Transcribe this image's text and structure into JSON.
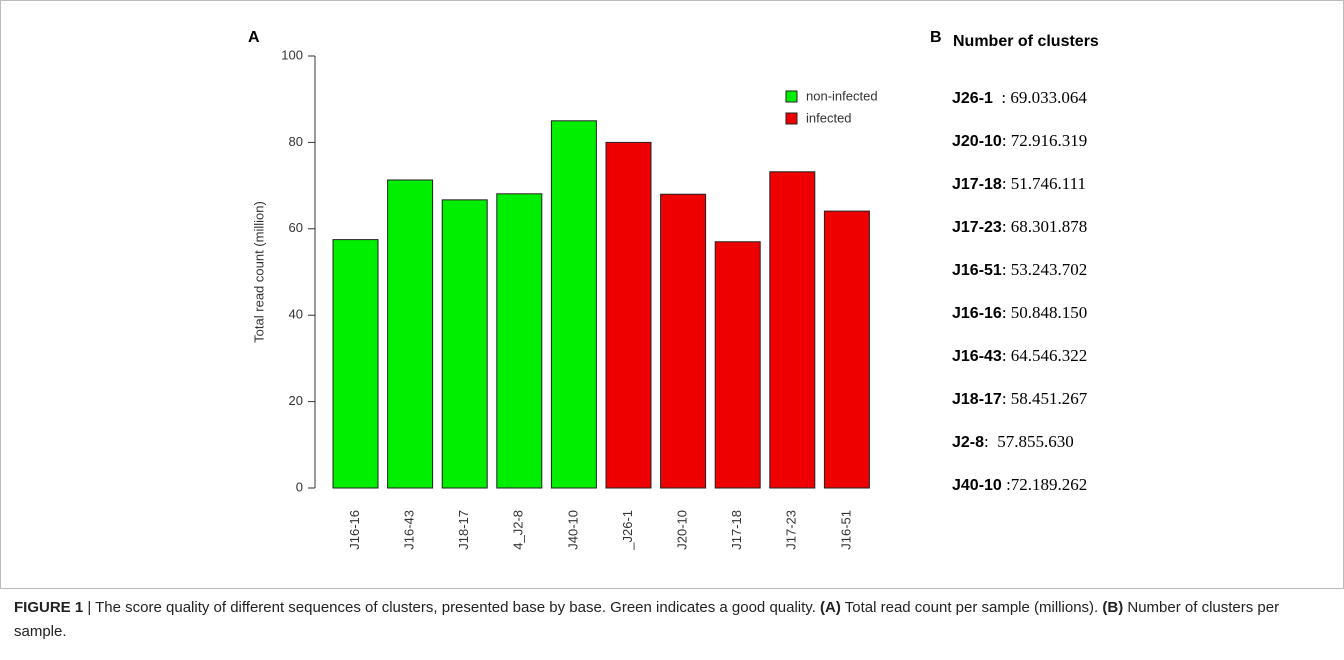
{
  "panel_a": {
    "label": "A"
  },
  "chart_data": {
    "type": "bar",
    "ylabel": "Total read count (million)",
    "categories": [
      "J16-16",
      "J16-43",
      "J18-17",
      "4_J2-8",
      "J40-10",
      "_J26-1",
      "J20-10",
      "J17-18",
      "J17-23",
      "J16-51"
    ],
    "series": [
      {
        "name": "non-infected",
        "color": "#00ee00",
        "values": [
          57.5,
          71.3,
          66.7,
          68.1,
          85,
          null,
          null,
          null,
          null,
          null
        ]
      },
      {
        "name": "infected",
        "color": "#ee0000",
        "values": [
          null,
          null,
          null,
          null,
          null,
          80,
          68,
          57,
          73.2,
          64.1
        ]
      }
    ],
    "ylim": [
      0,
      100
    ],
    "yticks": [
      0,
      20,
      40,
      60,
      80,
      100
    ],
    "legend": "top-right"
  },
  "panel_b": {
    "label": "B",
    "title": "Number of clusters",
    "entries": [
      {
        "label": "J26-1",
        "value": "  : 69.033.064"
      },
      {
        "label": "J20-10",
        "value": ": 72.916.319"
      },
      {
        "label": "J17-18",
        "value": ": 51.746.111"
      },
      {
        "label": "J17-23",
        "value": ": 68.301.878"
      },
      {
        "label": "J16-51",
        "value": ": 53.243.702"
      },
      {
        "label": "J16-16",
        "value": ": 50.848.150"
      },
      {
        "label": "J16-43",
        "value": ": 64.546.322"
      },
      {
        "label": "J18-17",
        "value": ": 58.451.267"
      },
      {
        "label": "J2-8",
        "value": ":  57.855.630"
      },
      {
        "label": "J40-10",
        "value": " :72.189.262"
      }
    ]
  },
  "caption": {
    "figure": "FIGURE 1",
    "text1": " | The score quality of different sequences of clusters, presented base by base. Green indicates a good quality. ",
    "a": "(A)",
    "text2": " Total read count per sample (millions). ",
    "b": "(B)",
    "text3": " Number of clusters per sample."
  }
}
